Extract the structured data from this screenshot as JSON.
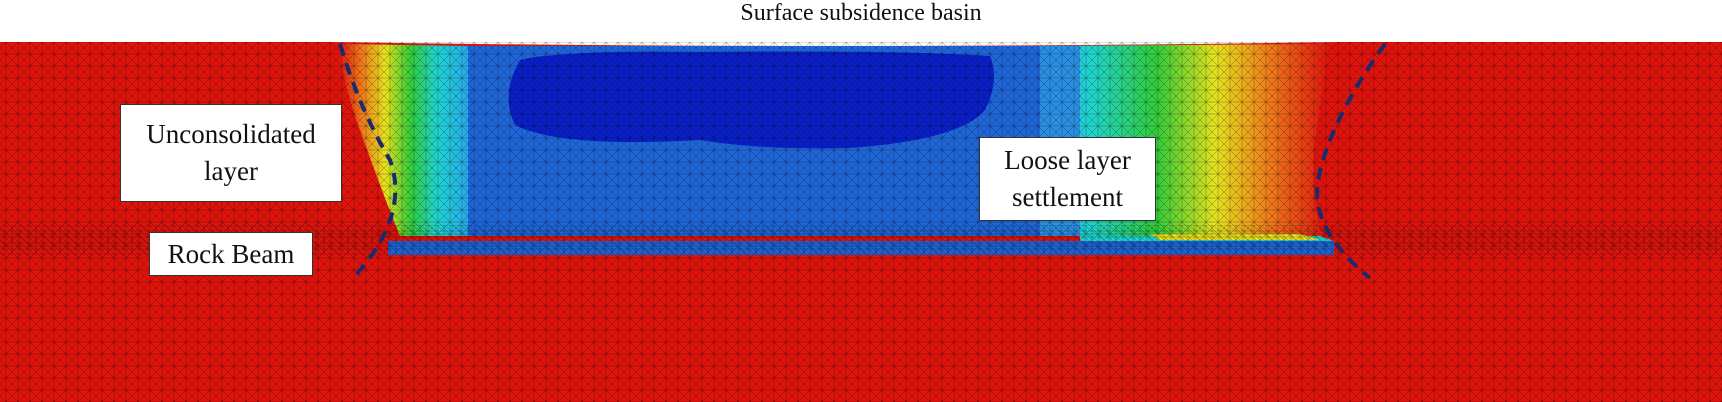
{
  "title": "Surface subsidence basin",
  "labels": {
    "unconsolidated_line1": "Unconsolidated",
    "unconsolidated_line2": "layer",
    "rock_beam": "Rock Beam",
    "loose_line1": "Loose layer",
    "loose_line2": "settlement"
  },
  "colors": {
    "background_red": "#e0140d",
    "deep_blue": "#0a1fc6",
    "mid_blue": "#1f66d9",
    "light_blue": "#2aa6ea",
    "cyan": "#1fd4d0",
    "green": "#32cc3a",
    "yellow": "#e6e21f",
    "orange": "#ef7a1a",
    "dashed_line": "#1a2a6c",
    "mesh_line": "#000000"
  }
}
